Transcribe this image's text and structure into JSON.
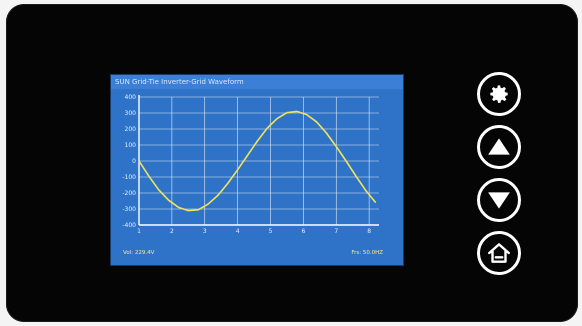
{
  "screen": {
    "title": "SUN Grid-Tie Inverter-Grid Waveform",
    "voltage_readout": "Vol: 229.4V",
    "frequency_readout": "Frs: 50.0HZ"
  },
  "buttons": {
    "settings_icon": "gear-icon",
    "up_icon": "triangle-up-icon",
    "down_icon": "triangle-down-icon",
    "home_icon": "house-icon"
  },
  "colors": {
    "screen_bg": "#2f73c9",
    "waveform": "#f2e35a",
    "grid": "#ffffff",
    "bezel": "#050505"
  },
  "chart_data": {
    "type": "line",
    "title": "SUN Grid-Tie Inverter-Grid Waveform",
    "xlabel": "",
    "ylabel": "",
    "xlim": [
      1,
      8.3
    ],
    "ylim": [
      -400,
      400
    ],
    "x_ticks": [
      1,
      2,
      3,
      4,
      5,
      6,
      7,
      8
    ],
    "y_ticks": [
      400,
      300,
      200,
      100,
      0,
      -100,
      -200,
      -300,
      -400
    ],
    "grid": true,
    "series": [
      {
        "x": [
          1.0,
          1.3,
          1.6,
          1.9,
          2.2,
          2.5,
          2.8,
          3.1,
          3.4,
          3.7,
          4.0,
          4.3,
          4.6,
          4.9,
          5.2,
          5.5,
          5.8,
          6.1,
          6.4,
          6.7,
          7.0,
          7.3,
          7.6,
          7.9,
          8.2
        ],
        "y": [
          0,
          -95,
          -180,
          -245,
          -290,
          -310,
          -305,
          -270,
          -215,
          -140,
          -55,
          35,
          125,
          205,
          265,
          302,
          310,
          290,
          245,
          175,
          90,
          0,
          -95,
          -185,
          -260
        ]
      }
    ]
  }
}
